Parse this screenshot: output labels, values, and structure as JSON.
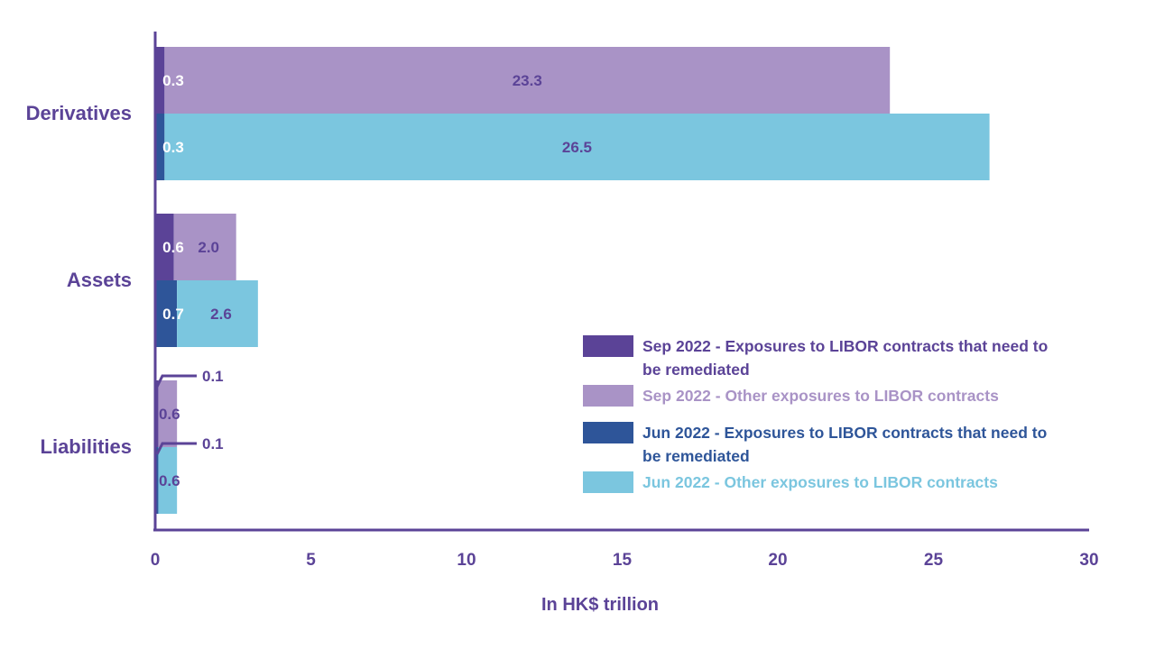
{
  "colors": {
    "axis": "#5b4397",
    "category_text": "#5b4397",
    "sep_remediate": "#5b4397",
    "sep_other": "#a993c6",
    "jun_remediate": "#2e5599",
    "jun_other": "#7bc6df"
  },
  "chart_data": {
    "type": "bar",
    "orientation": "horizontal",
    "stacked": true,
    "categories": [
      "Derivatives",
      "Assets",
      "Liabilities"
    ],
    "xlabel": "In HK$ trillion",
    "xlim": [
      0,
      30
    ],
    "xticks": [
      "0",
      "5",
      "10",
      "15",
      "20",
      "25",
      "30"
    ],
    "grid": false,
    "legend_position": "bottom-right",
    "groups": [
      {
        "period": "Sep 2022",
        "series": [
          {
            "name": "Sep 2022 - Exposures to LIBOR contracts that need to be remediated",
            "color_key": "sep_remediate",
            "values": [
              0.3,
              0.6,
              0.1
            ],
            "labels": [
              "0.3",
              "0.6",
              "0.1"
            ]
          },
          {
            "name": "Sep 2022 - Other exposures to LIBOR contracts",
            "color_key": "sep_other",
            "values": [
              23.3,
              2.0,
              0.6
            ],
            "labels": [
              "23.3",
              "2.0",
              "0.6"
            ]
          }
        ]
      },
      {
        "period": "Jun 2022",
        "series": [
          {
            "name": "Jun 2022 - Exposures to LIBOR contracts that need to be remediated",
            "color_key": "jun_remediate",
            "values": [
              0.3,
              0.7,
              0.1
            ],
            "labels": [
              "0.3",
              "0.7",
              "0.1"
            ]
          },
          {
            "name": "Jun 2022 - Other exposures to LIBOR contracts",
            "color_key": "jun_other",
            "values": [
              26.5,
              2.6,
              0.6
            ],
            "labels": [
              "26.5",
              "2.6",
              "0.6"
            ]
          }
        ]
      }
    ],
    "legend": [
      {
        "lines": [
          "Sep 2022 - Exposures to LIBOR contracts that need to",
          "be remediated"
        ],
        "color_key": "sep_remediate"
      },
      {
        "lines": [
          "Sep 2022 - Other exposures to LIBOR contracts"
        ],
        "color_key": "sep_other"
      },
      {
        "lines": [
          "Jun 2022 - Exposures to LIBOR contracts that need to",
          "be remediated"
        ],
        "color_key": "jun_remediate"
      },
      {
        "lines": [
          "Jun 2022 - Other exposures to LIBOR contracts"
        ],
        "color_key": "jun_other"
      }
    ]
  }
}
